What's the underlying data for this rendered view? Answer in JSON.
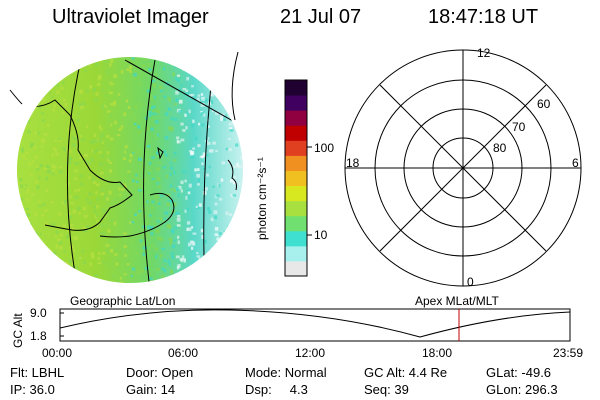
{
  "header": {
    "title": "Ultraviolet Imager",
    "date": "21 Jul 07",
    "time": "18:47:18 UT"
  },
  "colorbar": {
    "unit": "photon cm⁻²s⁻¹",
    "tick_100": "100",
    "tick_10": "10",
    "colors": [
      "#e8e8e8",
      "#a8f0ee",
      "#40e0d0",
      "#70e070",
      "#a8e040",
      "#d8e820",
      "#f0c020",
      "#f09020",
      "#e04020",
      "#c00000",
      "#900040",
      "#400060",
      "#200030"
    ]
  },
  "polar_plot": {
    "mlt_labels": {
      "top": "12",
      "left": "18",
      "right": "6",
      "bottom": "0"
    },
    "lat_labels": [
      "60",
      "70",
      "80"
    ]
  },
  "timeline": {
    "left_label": "Geographic Lat/Lon",
    "right_label": "Apex MLat/MLT",
    "y_axis_label": "GC Alt",
    "y_ticks": [
      "9.0",
      "1.8"
    ],
    "x_ticks": [
      "00:00",
      "06:00",
      "12:00",
      "18:00",
      "23:59"
    ],
    "current_marker_color": "#c00000"
  },
  "status": {
    "row1": [
      "Flt: LBHL",
      "Door: Open",
      "Mode: Normal",
      "GC Alt: 4.4 Re",
      "GLat: -49.6"
    ],
    "row2": [
      "IP: 36.0",
      "Gain: 14",
      "Dsp:     4.3",
      "Seq: 39",
      "GLon: 296.3"
    ]
  }
}
